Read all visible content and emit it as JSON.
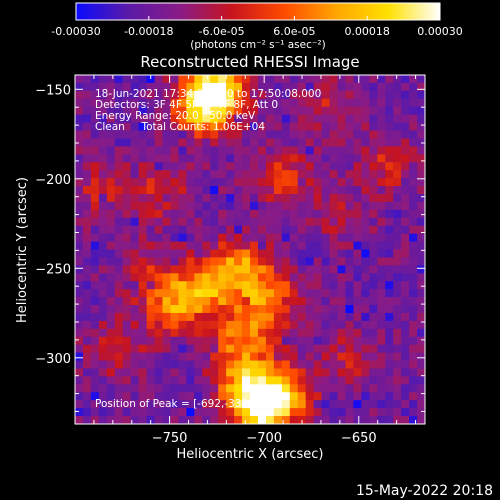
{
  "colorbar": {
    "ticks": [
      "-0.00030",
      "-0.00018",
      "-6.0e-05",
      "6.0e-05",
      "0.00018",
      "0.00030"
    ],
    "tick_values": [
      -0.0003,
      -0.00018,
      -6e-05,
      6e-05,
      0.00018,
      0.0003
    ],
    "units": "(photons cm⁻² s⁻¹ asec⁻²)",
    "range": [
      -0.0003,
      0.0003
    ],
    "colors": [
      "#0a0aff",
      "#5a1aa8",
      "#8a1b86",
      "#c8141e",
      "#ff4a00",
      "#ffa500",
      "#ffe000",
      "#ffffff"
    ]
  },
  "chart_data": {
    "type": "heatmap",
    "title": "Reconstructed RHESSI Image",
    "xlabel": "Heliocentric X (arcsec)",
    "ylabel": "Heliocentric Y (arcsec)",
    "xlim": [
      -800,
      -615
    ],
    "ylim": [
      -337,
      -142
    ],
    "x_ticks": [
      -750,
      -700,
      -650
    ],
    "y_ticks": [
      -150,
      -200,
      -250,
      -300
    ],
    "x_tick_labels": [
      "−750",
      "−700",
      "−650"
    ],
    "y_tick_labels": [
      "−150",
      "−200",
      "−250",
      "−300"
    ],
    "annotations": [
      "18-Jun-2021 17:34:08.000 to 17:50:08.000",
      "Detectors: 3F 4F 5F 6F 7F 8F, Att 0",
      "Energy Range: 20.0 - 50.0 keV",
      "Clean     Total Counts: 1.06E+04"
    ],
    "peak_label": "Position of Peak = [-692,-332]",
    "peak": [
      -692,
      -332
    ],
    "features": [
      {
        "x": -725,
        "y": -150,
        "intensity": 1.0
      },
      {
        "x": -733,
        "y": -160,
        "intensity": 0.85
      },
      {
        "x": -690,
        "y": -200,
        "intensity": 0.45
      },
      {
        "x": -713,
        "y": -250,
        "intensity": 0.75
      },
      {
        "x": -733,
        "y": -262,
        "intensity": 0.7
      },
      {
        "x": -750,
        "y": -272,
        "intensity": 0.6
      },
      {
        "x": -697,
        "y": -268,
        "intensity": 0.7
      },
      {
        "x": -712,
        "y": -288,
        "intensity": 0.6
      },
      {
        "x": -710,
        "y": -312,
        "intensity": 0.75
      },
      {
        "x": -703,
        "y": -330,
        "intensity": 1.0
      },
      {
        "x": -690,
        "y": -320,
        "intensity": 0.8
      },
      {
        "x": -760,
        "y": -250,
        "intensity": 0.3
      },
      {
        "x": -778,
        "y": -295,
        "intensity": 0.35
      },
      {
        "x": -755,
        "y": -207,
        "intensity": 0.4
      },
      {
        "x": -660,
        "y": -220,
        "intensity": 0.25
      },
      {
        "x": -635,
        "y": -192,
        "intensity": 0.35
      },
      {
        "x": -665,
        "y": -160,
        "intensity": 0.3
      },
      {
        "x": -788,
        "y": -205,
        "intensity": 0.3
      },
      {
        "x": -655,
        "y": -300,
        "intensity": 0.3
      }
    ],
    "grid": false,
    "colorbar_position": "top"
  },
  "footer": {
    "timestamp": "15-May-2022 20:18"
  }
}
